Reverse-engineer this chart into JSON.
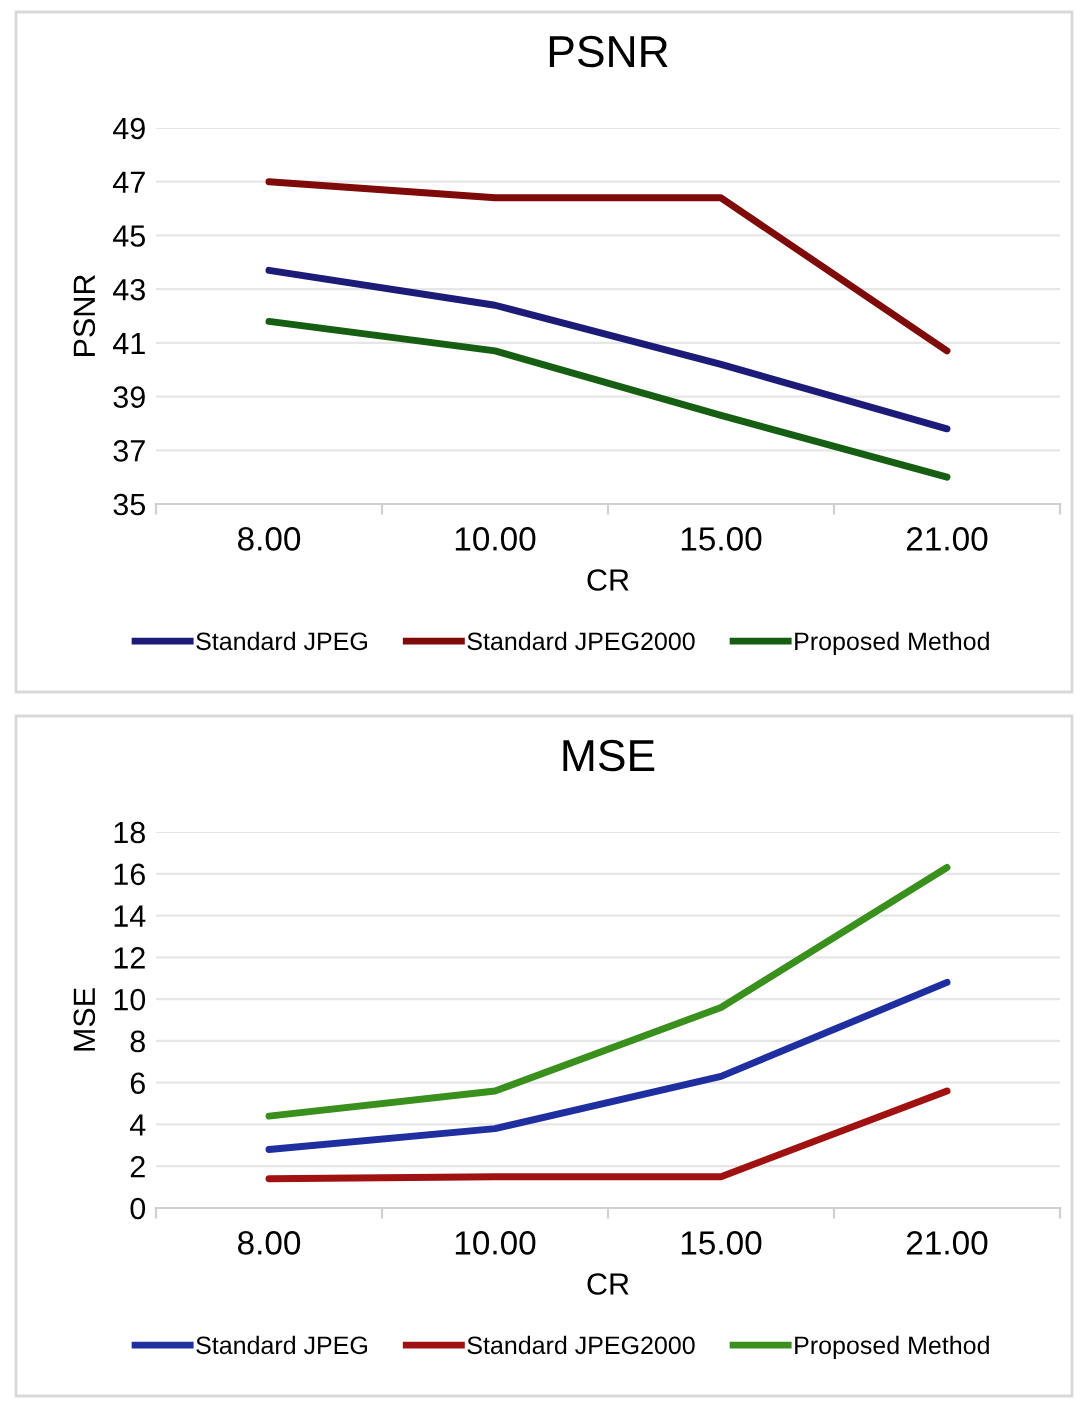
{
  "chart_data": [
    {
      "type": "line",
      "title": "PSNR",
      "xlabel": "CR",
      "ylabel": "PSNR",
      "categories": [
        "8.00",
        "10.00",
        "15.00",
        "21.00"
      ],
      "ylim": [
        35,
        49
      ],
      "yticks": [
        35,
        37,
        39,
        41,
        43,
        45,
        47,
        49
      ],
      "grid": "y",
      "legend": "bottom",
      "marker": "none",
      "line_style": "solid",
      "series": [
        {
          "name": "Standard JPEG",
          "color": "#1c1c78",
          "values": [
            43.7,
            42.4,
            40.2,
            37.8
          ]
        },
        {
          "name": "Standard JPEG2000",
          "color": "#7f0a0a",
          "values": [
            47.0,
            46.4,
            46.4,
            40.7
          ]
        },
        {
          "name": "Proposed Method",
          "color": "#155e12",
          "values": [
            41.8,
            40.7,
            38.3,
            36.0
          ]
        }
      ]
    },
    {
      "type": "line",
      "title": "MSE",
      "xlabel": "CR",
      "ylabel": "MSE",
      "categories": [
        "8.00",
        "10.00",
        "15.00",
        "21.00"
      ],
      "ylim": [
        0,
        18
      ],
      "yticks": [
        0,
        2,
        4,
        6,
        8,
        10,
        12,
        14,
        16,
        18
      ],
      "grid": "y",
      "legend": "bottom",
      "marker": "none",
      "line_style": "solid",
      "series": [
        {
          "name": "Standard JPEG",
          "color": "#1f2fa0",
          "values": [
            2.8,
            3.8,
            6.3,
            10.8
          ]
        },
        {
          "name": "Standard JPEG2000",
          "color": "#a01212",
          "values": [
            1.4,
            1.5,
            1.5,
            5.6
          ]
        },
        {
          "name": "Proposed Method",
          "color": "#3a901c",
          "values": [
            4.4,
            5.6,
            9.6,
            16.3
          ]
        }
      ]
    }
  ]
}
